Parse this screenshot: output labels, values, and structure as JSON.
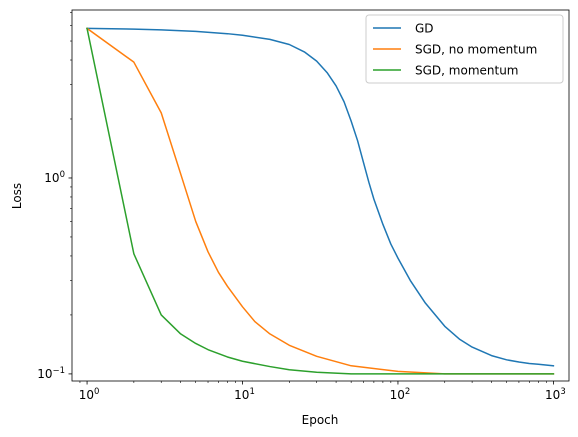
{
  "chart_data": {
    "type": "line",
    "xlabel": "Epoch",
    "ylabel": "Loss",
    "xscale": "log",
    "yscale": "log",
    "xlim": [
      0.8,
      1260
    ],
    "ylim": [
      0.092,
      7.2
    ],
    "grid": false,
    "legend_position": "top-right",
    "x_ticks": [
      {
        "value": 1,
        "base": "10",
        "exp": "0"
      },
      {
        "value": 10,
        "base": "10",
        "exp": "1"
      },
      {
        "value": 100,
        "base": "10",
        "exp": "2"
      },
      {
        "value": 1000,
        "base": "10",
        "exp": "3"
      }
    ],
    "y_ticks": [
      {
        "value": 0.1,
        "base": "10",
        "exp": "−1"
      },
      {
        "value": 1,
        "base": "10",
        "exp": "0"
      }
    ],
    "series": [
      {
        "name": "GD",
        "color": "#1f77b4",
        "x": [
          1,
          2,
          3,
          5,
          8,
          10,
          15,
          20,
          25,
          30,
          35,
          40,
          45,
          50,
          55,
          60,
          65,
          70,
          80,
          90,
          100,
          120,
          150,
          200,
          250,
          300,
          400,
          500,
          600,
          700,
          800,
          1000
        ],
        "y": [
          5.8,
          5.75,
          5.7,
          5.6,
          5.45,
          5.35,
          5.1,
          4.8,
          4.4,
          3.95,
          3.45,
          2.95,
          2.45,
          1.95,
          1.55,
          1.2,
          0.95,
          0.78,
          0.58,
          0.46,
          0.39,
          0.3,
          0.23,
          0.175,
          0.15,
          0.137,
          0.124,
          0.118,
          0.115,
          0.113,
          0.112,
          0.11
        ]
      },
      {
        "name": "SGD, no momentum",
        "color": "#ff7f0e",
        "x": [
          1,
          2,
          3,
          4,
          5,
          6,
          7,
          8,
          10,
          12,
          15,
          20,
          30,
          50,
          100,
          200,
          500,
          1000
        ],
        "y": [
          5.8,
          3.9,
          2.15,
          1.05,
          0.6,
          0.42,
          0.33,
          0.28,
          0.22,
          0.185,
          0.16,
          0.14,
          0.123,
          0.11,
          0.103,
          0.1,
          0.1,
          0.1
        ]
      },
      {
        "name": "SGD, momentum",
        "color": "#2ca02c",
        "x": [
          1,
          2,
          3,
          4,
          5,
          6,
          8,
          10,
          15,
          20,
          30,
          50,
          100,
          1000
        ],
        "y": [
          5.8,
          0.41,
          0.2,
          0.16,
          0.143,
          0.133,
          0.122,
          0.116,
          0.109,
          0.105,
          0.102,
          0.1,
          0.1,
          0.1
        ]
      }
    ]
  }
}
